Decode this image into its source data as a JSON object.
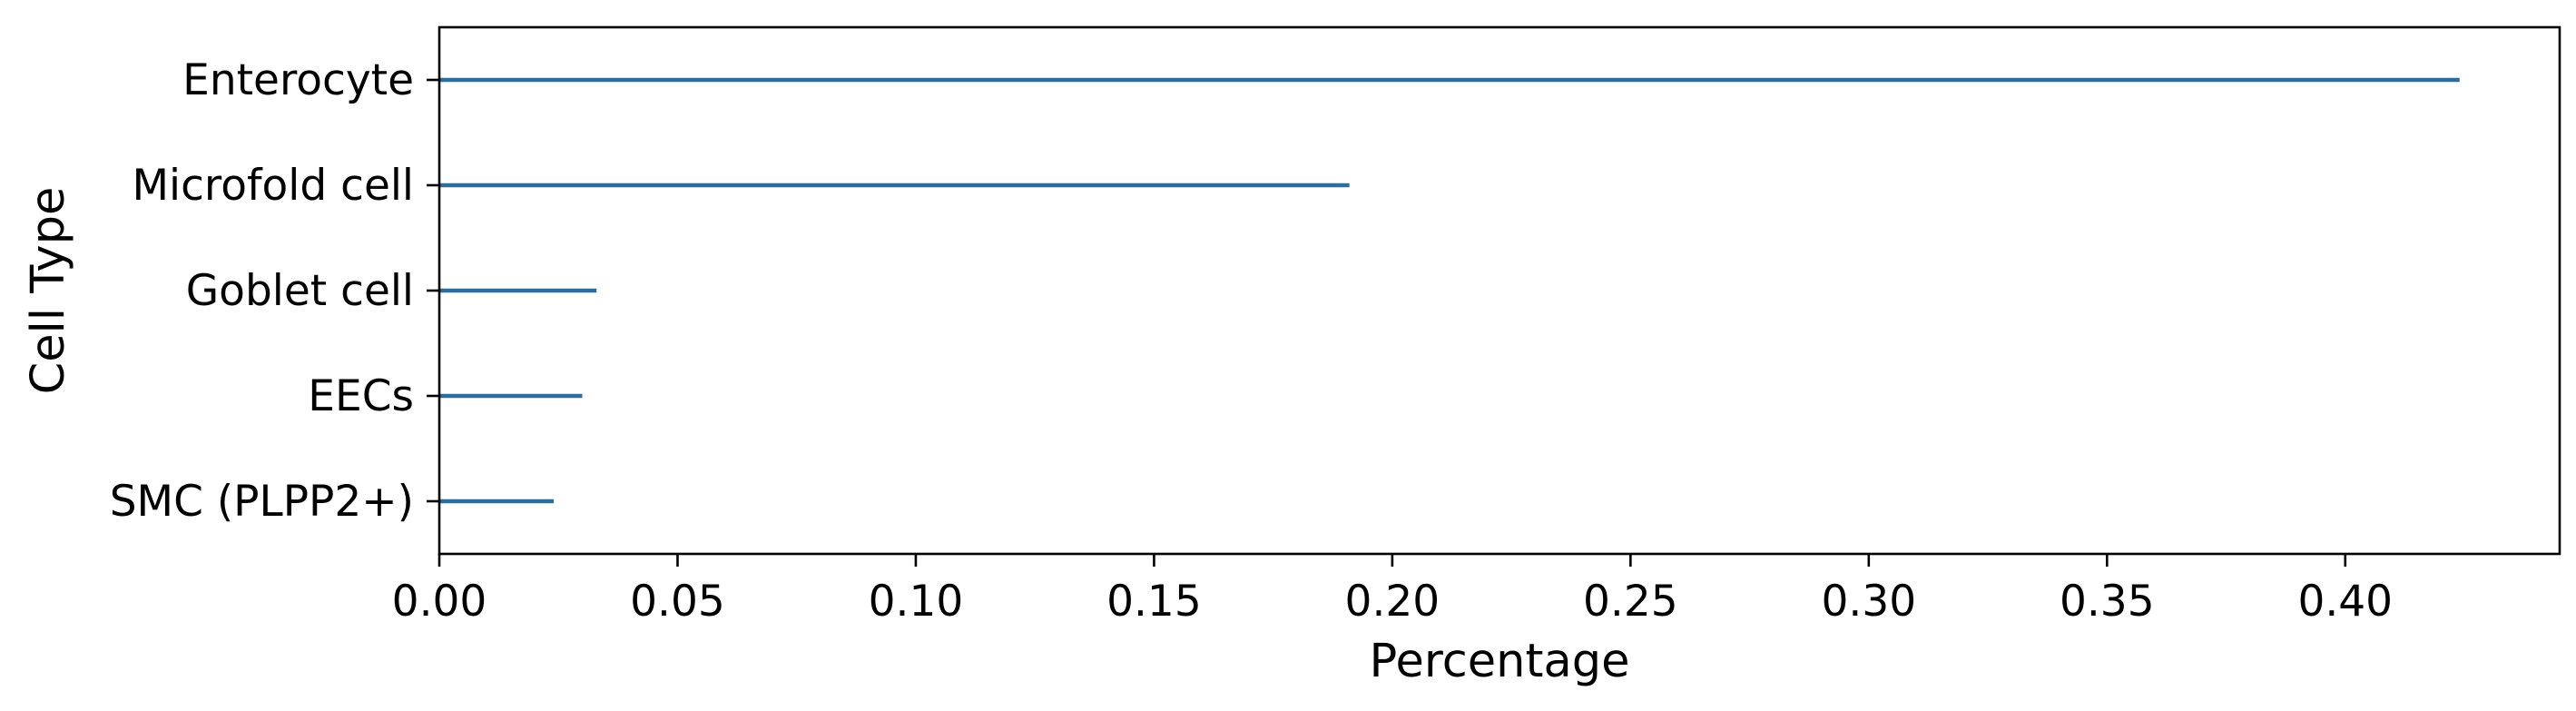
{
  "chart_data": {
    "type": "bar",
    "orientation": "horizontal",
    "title": "",
    "xlabel": "Percentage",
    "ylabel": "Cell Type",
    "categories": [
      "Enterocyte",
      "Microfold cell",
      "Goblet cell",
      "EECs",
      "SMC (PLPP2+)"
    ],
    "values": [
      0.424,
      0.191,
      0.033,
      0.03,
      0.024
    ],
    "xlim": [
      0,
      0.445
    ],
    "xticks": [
      0.0,
      0.05,
      0.1,
      0.15,
      0.2,
      0.25,
      0.3,
      0.35,
      0.4
    ],
    "xtick_labels": [
      "0.00",
      "0.05",
      "0.10",
      "0.15",
      "0.20",
      "0.25",
      "0.30",
      "0.35",
      "0.40"
    ],
    "grid": false,
    "legend": "none",
    "bar_color": "#2c6e9b"
  }
}
